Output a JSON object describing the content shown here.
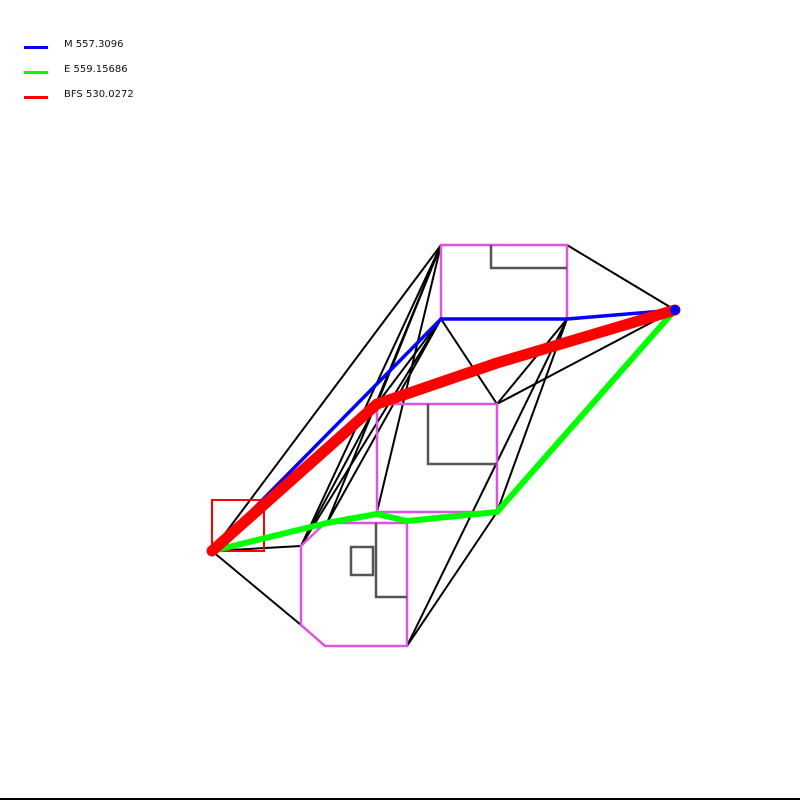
{
  "legend": [
    {
      "label": "M 557.3096",
      "color": "#0000ff"
    },
    {
      "label": "E 559.15686",
      "color": "#00ff00"
    },
    {
      "label": "BFS 530.0272",
      "color": "#ff0000"
    }
  ],
  "colors": {
    "obstacle": "#dd55dd",
    "inner_wall": "#555555",
    "graph_edge": "#000000",
    "start_box": "#ff0000",
    "path_m": "#0000ff",
    "path_e": "#00ff00",
    "path_bfs": "#ff0000"
  }
}
